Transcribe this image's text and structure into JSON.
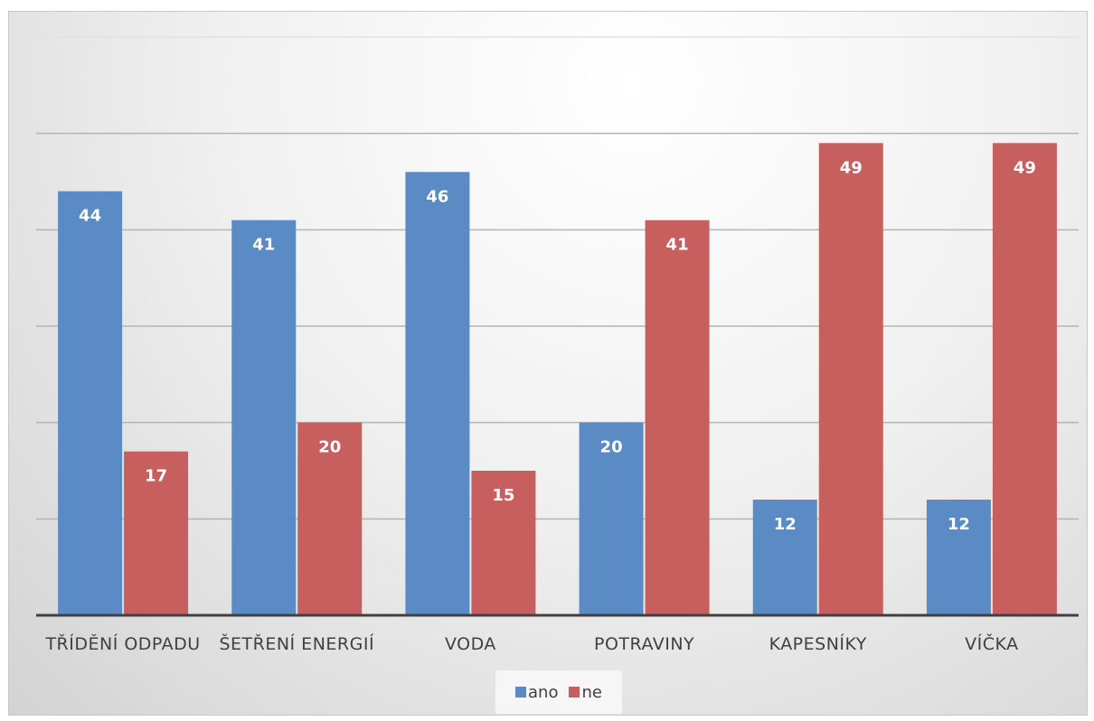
{
  "chart_data": {
    "type": "bar",
    "title": "",
    "xlabel": "",
    "ylabel": "",
    "categories": [
      "TŘÍDĚNÍ ODPADU",
      "ŠETŘENÍ ENERGIÍ",
      "VODA",
      "POTRAVINY",
      "KAPESNÍKY",
      "VÍČKA"
    ],
    "series": [
      {
        "name": "ano",
        "color": "#5b8bc4",
        "values": [
          44,
          41,
          46,
          20,
          12,
          12
        ]
      },
      {
        "name": "ne",
        "color": "#c75f5f",
        "values": [
          17,
          20,
          15,
          41,
          49,
          49
        ]
      }
    ],
    "ylim": [
      0,
      60
    ],
    "y_gridlines": [
      10,
      20,
      30,
      40,
      50,
      60
    ],
    "y_tick_labels_shown": false,
    "grid": true,
    "data_labels": true,
    "legend_position": "bottom"
  }
}
